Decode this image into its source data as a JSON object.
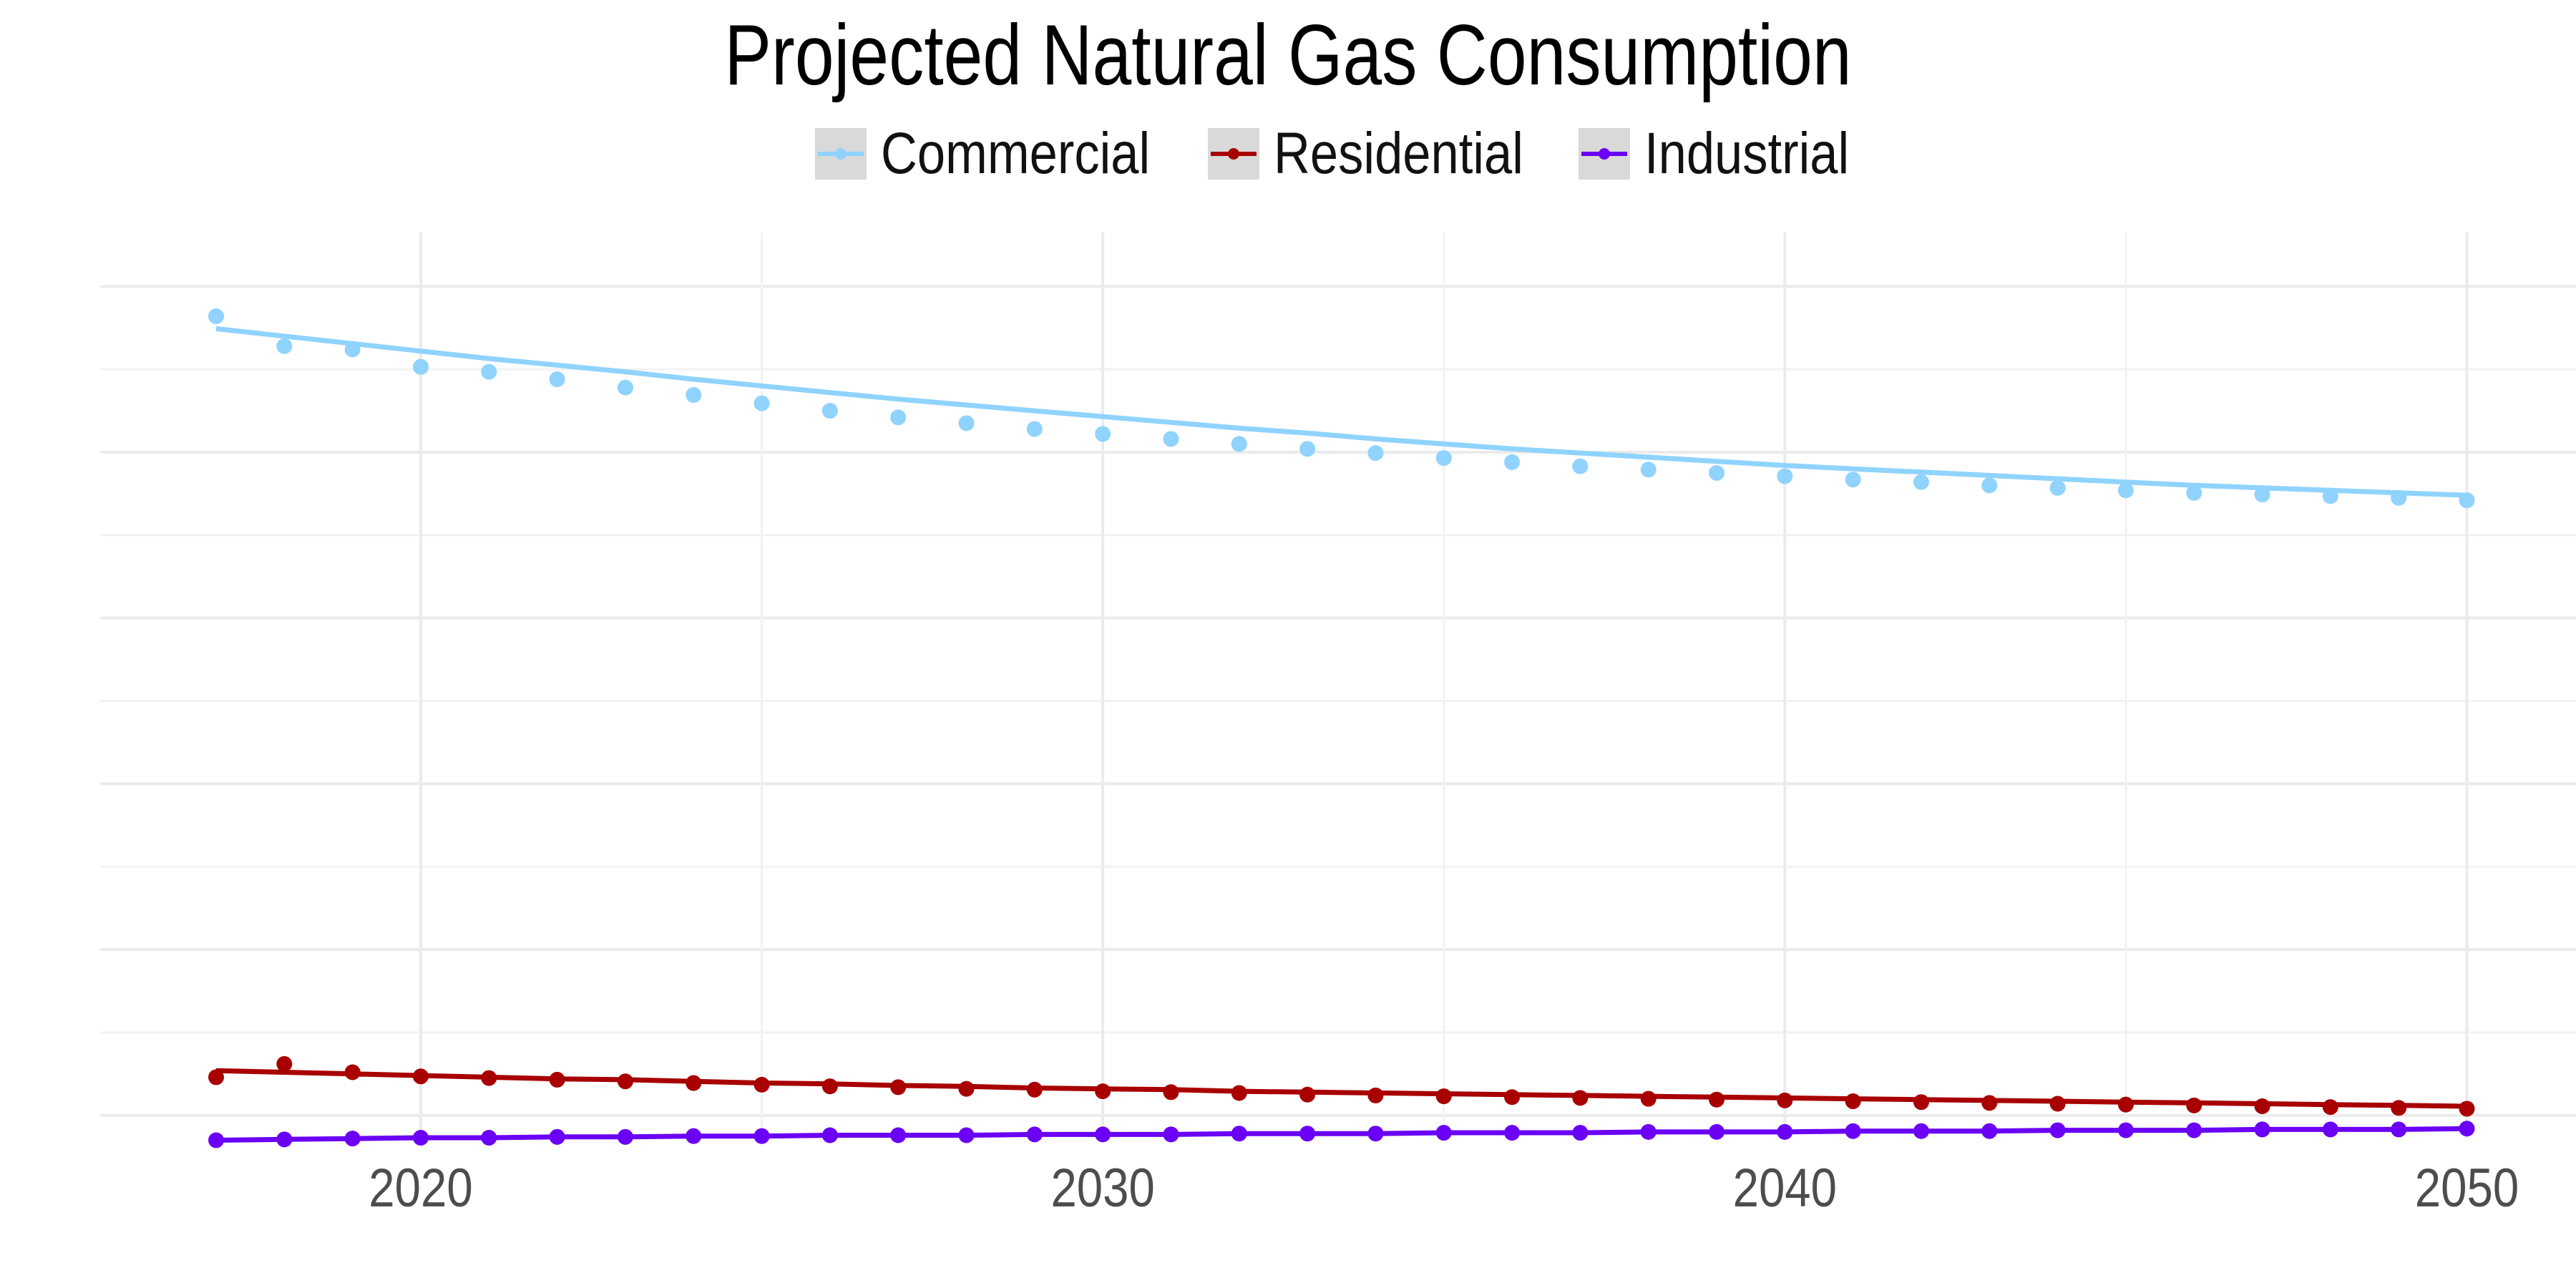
{
  "chart_data": {
    "type": "line",
    "title": "Projected Natural Gas Consumption",
    "xlabel": "",
    "ylabel": "",
    "x_ticks": [
      "2020",
      "2030",
      "2040",
      "2050"
    ],
    "x_tick_values": [
      2020,
      2030,
      2040,
      2050
    ],
    "xlim": [
      2015.3,
      2051.6
    ],
    "ylim": [
      -0.0027,
      0.1065
    ],
    "y_gridlines": [
      0.0,
      0.01,
      0.02,
      0.03,
      0.04,
      0.05,
      0.06,
      0.07,
      0.08,
      0.09,
      0.1
    ],
    "grid": true,
    "legend": "top",
    "x": [
      2017,
      2018,
      2019,
      2020,
      2021,
      2022,
      2023,
      2024,
      2025,
      2026,
      2027,
      2028,
      2029,
      2030,
      2031,
      2032,
      2033,
      2034,
      2035,
      2036,
      2037,
      2038,
      2039,
      2040,
      2041,
      2042,
      2043,
      2044,
      2045,
      2046,
      2047,
      2048,
      2049,
      2050
    ],
    "series": [
      {
        "name": "Commercial",
        "color": "#8fd3fe",
        "values": [
          0.0964,
          0.0928,
          0.0924,
          0.0903,
          0.0897,
          0.0888,
          0.0878,
          0.0869,
          0.0859,
          0.085,
          0.0842,
          0.0835,
          0.0828,
          0.0822,
          0.0816,
          0.081,
          0.0804,
          0.0799,
          0.0793,
          0.0788,
          0.0783,
          0.0779,
          0.0775,
          0.0771,
          0.0767,
          0.0764,
          0.076,
          0.0757,
          0.0754,
          0.0751,
          0.0749,
          0.0747,
          0.0745,
          0.0742
        ],
        "fit": [
          0.0949,
          0.094,
          0.0931,
          0.0922,
          0.0913,
          0.0905,
          0.0897,
          0.0888,
          0.088,
          0.0872,
          0.0864,
          0.0857,
          0.085,
          0.0843,
          0.0836,
          0.0829,
          0.0823,
          0.0816,
          0.081,
          0.0804,
          0.0799,
          0.0794,
          0.0789,
          0.0784,
          0.078,
          0.0776,
          0.0772,
          0.0768,
          0.0764,
          0.076,
          0.0757,
          0.0754,
          0.0751,
          0.0748
        ]
      },
      {
        "name": "Residential",
        "color": "#a80000",
        "values": [
          0.0046,
          0.0062,
          0.0052,
          0.0047,
          0.0045,
          0.0043,
          0.0041,
          0.0039,
          0.0037,
          0.0035,
          0.0034,
          0.0032,
          0.0031,
          0.0029,
          0.0028,
          0.0027,
          0.0025,
          0.0024,
          0.0023,
          0.0022,
          0.0021,
          0.002,
          0.0019,
          0.0018,
          0.0017,
          0.0016,
          0.0015,
          0.0014,
          0.0013,
          0.0012,
          0.0011,
          0.001,
          0.0009,
          0.0008
        ],
        "fit": [
          0.0054,
          0.0052,
          0.005,
          0.0048,
          0.0046,
          0.0044,
          0.0043,
          0.0041,
          0.0039,
          0.0038,
          0.0036,
          0.0035,
          0.0033,
          0.0032,
          0.0031,
          0.0029,
          0.0028,
          0.0027,
          0.0026,
          0.0025,
          0.0024,
          0.0023,
          0.0022,
          0.0021,
          0.002,
          0.0019,
          0.0018,
          0.0017,
          0.0016,
          0.0015,
          0.0014,
          0.0013,
          0.0012,
          0.0011
        ]
      },
      {
        "name": "Industrial",
        "color": "#6a00f4",
        "values": [
          -0.003,
          -0.0029,
          -0.0028,
          -0.0027,
          -0.0027,
          -0.0026,
          -0.0026,
          -0.0025,
          -0.0025,
          -0.0024,
          -0.0024,
          -0.0024,
          -0.0023,
          -0.0023,
          -0.0023,
          -0.0022,
          -0.0022,
          -0.0022,
          -0.0021,
          -0.0021,
          -0.0021,
          -0.002,
          -0.002,
          -0.002,
          -0.0019,
          -0.0019,
          -0.0019,
          -0.0018,
          -0.0018,
          -0.0018,
          -0.0017,
          -0.0017,
          -0.0017,
          -0.0016
        ],
        "fit": [
          -0.003,
          -0.0029,
          -0.0028,
          -0.0027,
          -0.0027,
          -0.0026,
          -0.0026,
          -0.0025,
          -0.0025,
          -0.0024,
          -0.0024,
          -0.0024,
          -0.0023,
          -0.0023,
          -0.0023,
          -0.0022,
          -0.0022,
          -0.0022,
          -0.0021,
          -0.0021,
          -0.0021,
          -0.002,
          -0.002,
          -0.002,
          -0.0019,
          -0.0019,
          -0.0019,
          -0.0018,
          -0.0018,
          -0.0018,
          -0.0017,
          -0.0017,
          -0.0017,
          -0.0016
        ]
      }
    ]
  }
}
